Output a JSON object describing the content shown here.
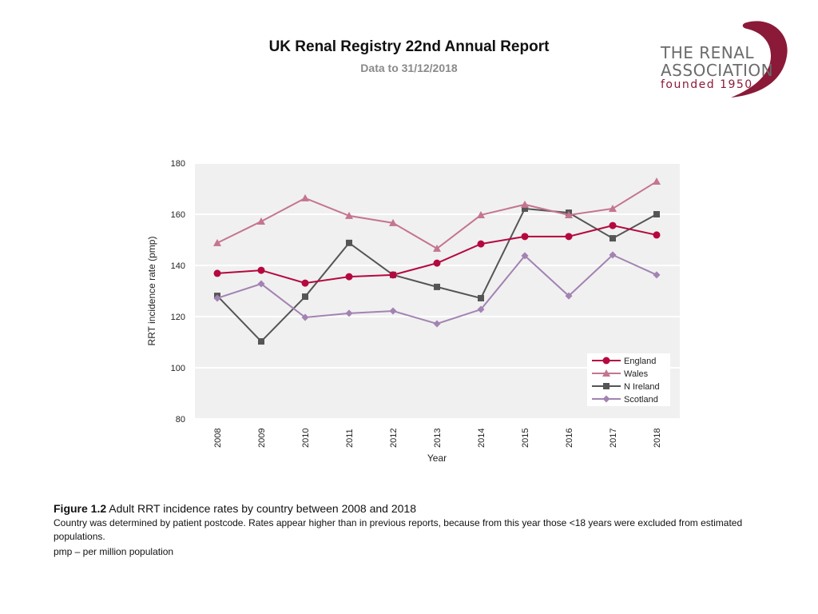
{
  "header": {
    "title": "UK Renal Registry 22nd Annual Report",
    "subtitle": "Data to 31/12/2018"
  },
  "logo": {
    "line1": "THE RENAL",
    "line2": "ASSOCIATION",
    "line3": "founded 1950",
    "brand_color": "#8a1a38"
  },
  "caption": {
    "figure_label": "Figure 1.2",
    "figure_title": " Adult RRT incidence rates by country between 2008 and 2018",
    "line1": "Country was determined by patient postcode. Rates appear higher than in previous reports, because from this year those <18 years were excluded from estimated populations.",
    "line2": "pmp – per million population"
  },
  "chart_data": {
    "type": "line",
    "title": "",
    "xlabel": "Year",
    "ylabel": "RRT incidence rate (pmp)",
    "ylim": [
      80,
      180
    ],
    "yticks": [
      80,
      100,
      120,
      140,
      160,
      180
    ],
    "grid": true,
    "legend_position": "bottom-right",
    "categories": [
      "2008",
      "2009",
      "2010",
      "2011",
      "2012",
      "2013",
      "2014",
      "2015",
      "2016",
      "2017",
      "2018"
    ],
    "series": [
      {
        "name": "England",
        "marker": "circle",
        "color": "#b5083f",
        "values": [
          136.9,
          138.1,
          133.1,
          135.6,
          136.3,
          140.9,
          148.4,
          151.3,
          151.3,
          155.6,
          151.9
        ]
      },
      {
        "name": "Wales",
        "marker": "triangle",
        "color": "#c47590",
        "values": [
          148.8,
          157.2,
          166.3,
          159.4,
          156.6,
          146.6,
          159.7,
          163.8,
          159.7,
          162.2,
          172.8
        ]
      },
      {
        "name": "N Ireland",
        "marker": "square",
        "color": "#555555",
        "values": [
          128.1,
          110.3,
          127.8,
          148.8,
          136.3,
          131.6,
          127.2,
          162.2,
          160.6,
          150.6,
          160.0
        ]
      },
      {
        "name": "Scotland",
        "marker": "diamond",
        "color": "#a283b2",
        "values": [
          127.2,
          132.8,
          119.7,
          121.3,
          122.2,
          117.2,
          122.8,
          143.8,
          128.1,
          144.1,
          136.3
        ]
      }
    ]
  }
}
